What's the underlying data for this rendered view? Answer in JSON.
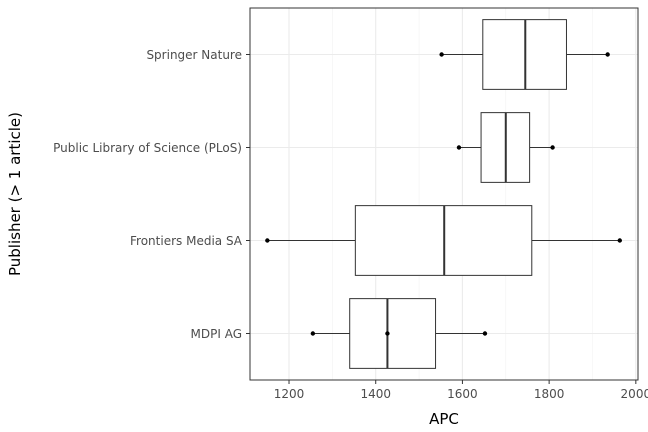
{
  "chart_data": {
    "type": "boxplot",
    "orientation": "horizontal",
    "xlabel": "APC",
    "ylabel": "Publisher (> 1 article)",
    "xlim": [
      1110,
      2005
    ],
    "x_ticks": [
      1200,
      1400,
      1600,
      1800,
      2000
    ],
    "grid": true,
    "categories": [
      "MDPI AG",
      "Frontiers Media SA",
      "Public Library of Science (PLoS)",
      "Springer Nature"
    ],
    "boxes": [
      {
        "category": "MDPI AG",
        "min": 1255,
        "q1": 1340,
        "median": 1427,
        "q3": 1538,
        "max": 1652,
        "points": [
          1255,
          1427,
          1652
        ]
      },
      {
        "category": "Frontiers Media SA",
        "min": 1150,
        "q1": 1353,
        "median": 1558,
        "q3": 1760,
        "max": 1963,
        "points": [
          1150,
          1963
        ]
      },
      {
        "category": "Public Library of Science (PLoS)",
        "min": 1592,
        "q1": 1643,
        "median": 1700,
        "q3": 1755,
        "max": 1808,
        "points": [
          1592,
          1808
        ]
      },
      {
        "category": "Springer Nature",
        "min": 1552,
        "q1": 1647,
        "median": 1745,
        "q3": 1840,
        "max": 1935,
        "points": [
          1552,
          1935
        ]
      }
    ]
  }
}
